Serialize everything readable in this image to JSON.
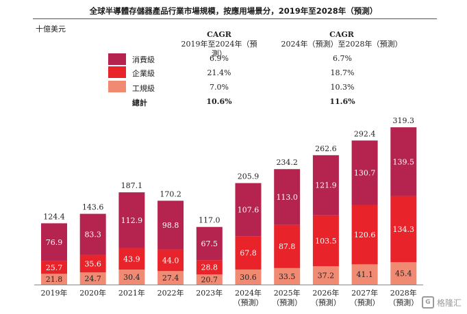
{
  "chart_data": {
    "type": "bar",
    "stacked": true,
    "title": "全球半導體存儲器產品行業市場規模，按應用場景分，2019年至2028年（預測）",
    "unit": "十億美元",
    "categories": [
      [
        "2019年"
      ],
      [
        "2020年"
      ],
      [
        "2021年"
      ],
      [
        "2022年"
      ],
      [
        "2023年"
      ],
      [
        "2024年",
        "（預測）"
      ],
      [
        "2025年",
        "（預測）"
      ],
      [
        "2026年",
        "（預測）"
      ],
      [
        "2027年",
        "（預測）"
      ],
      [
        "2028年",
        "（預測）"
      ]
    ],
    "series": [
      {
        "name": "工規級",
        "color": "#f08a72",
        "values": [
          "21.8",
          "24.7",
          "30.4",
          "27.4",
          "20.7",
          "30.6",
          "33.5",
          "37.2",
          "41.1",
          "45.4"
        ]
      },
      {
        "name": "企業級",
        "color": "#e8232a",
        "values": [
          "25.7",
          "35.6",
          "43.9",
          "44.0",
          "28.8",
          "67.8",
          "87.8",
          "103.5",
          "120.6",
          "134.3"
        ]
      },
      {
        "name": "消費級",
        "color": "#b5234f",
        "values": [
          "76.9",
          "83.3",
          "112.9",
          "98.8",
          "67.5",
          "107.6",
          "113.0",
          "121.9",
          "130.7",
          "139.5"
        ]
      }
    ],
    "totals": [
      "124.4",
      "143.6",
      "187.1",
      "170.2",
      "117.0",
      "205.9",
      "234.2",
      "262.6",
      "292.4",
      "319.3"
    ],
    "ylim": [
      0,
      319.3
    ],
    "cagr_table": {
      "header_1": "CAGR",
      "header_1_sub": "2019年至2024年（預測）",
      "header_2": "CAGR",
      "header_2_sub": "2024年（預測）至2028年（預測）",
      "rows": [
        {
          "label": "消費級",
          "color": "#b5234f",
          "cagr_1": "6.9%",
          "cagr_2": "6.7%"
        },
        {
          "label": "企業級",
          "color": "#e8232a",
          "cagr_1": "21.4%",
          "cagr_2": "18.7%"
        },
        {
          "label": "工規級",
          "color": "#f08a72",
          "cagr_1": "7.0%",
          "cagr_2": "10.3%"
        }
      ],
      "total_row": {
        "label": "總計",
        "cagr_1": "10.6%",
        "cagr_2": "11.6%"
      }
    }
  },
  "watermark": "格隆汇"
}
